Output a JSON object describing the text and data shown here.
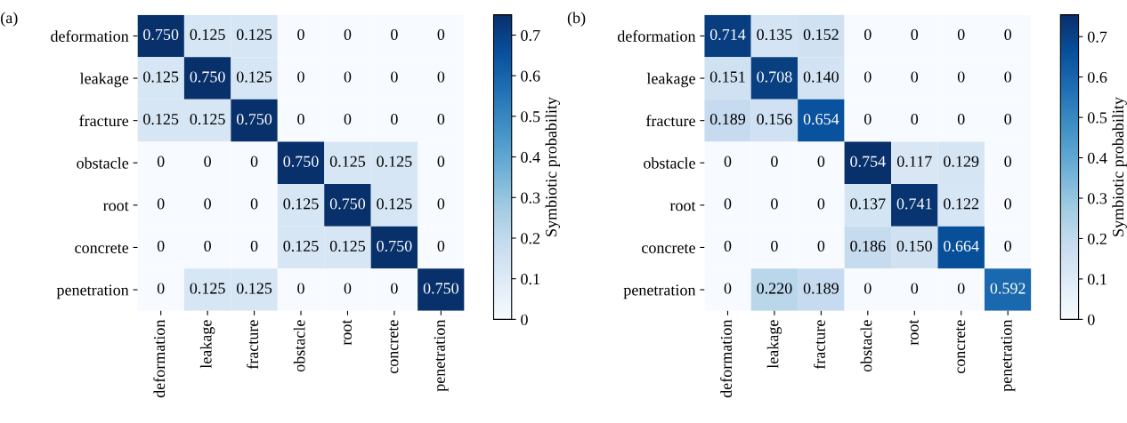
{
  "chart_data": [
    {
      "type": "heatmap",
      "title": "(a)",
      "clabel": "Symbiotic probability",
      "categories": [
        "deformation",
        "leakage",
        "fracture",
        "obstacle",
        "root",
        "concrete",
        "penetration"
      ],
      "y_categories": [
        "deformation",
        "leakage",
        "fracture",
        "obstacle",
        "root",
        "concrete",
        "penetration"
      ],
      "cells": [
        [
          0.75,
          0.125,
          0.125,
          0,
          0,
          0,
          0
        ],
        [
          0.125,
          0.75,
          0.125,
          0,
          0,
          0,
          0
        ],
        [
          0.125,
          0.125,
          0.75,
          0,
          0,
          0,
          0
        ],
        [
          0,
          0,
          0,
          0.75,
          0.125,
          0.125,
          0
        ],
        [
          0,
          0,
          0,
          0.125,
          0.75,
          0.125,
          0
        ],
        [
          0,
          0,
          0,
          0.125,
          0.125,
          0.75,
          0
        ],
        [
          0,
          0.125,
          0.125,
          0,
          0,
          0,
          0.75
        ]
      ],
      "cell_labels": [
        [
          "0.750",
          "0.125",
          "0.125",
          "0",
          "0",
          "0",
          "0"
        ],
        [
          "0.125",
          "0.750",
          "0.125",
          "0",
          "0",
          "0",
          "0"
        ],
        [
          "0.125",
          "0.125",
          "0.750",
          "0",
          "0",
          "0",
          "0"
        ],
        [
          "0",
          "0",
          "0",
          "0.750",
          "0.125",
          "0.125",
          "0"
        ],
        [
          "0",
          "0",
          "0",
          "0.125",
          "0.750",
          "0.125",
          "0"
        ],
        [
          "0",
          "0",
          "0",
          "0.125",
          "0.125",
          "0.750",
          "0"
        ],
        [
          "0",
          "0.125",
          "0.125",
          "0",
          "0",
          "0",
          "0.750"
        ]
      ],
      "clim": [
        0,
        0.75
      ],
      "cticks": [
        0,
        0.1,
        0.2,
        0.3,
        0.4,
        0.5,
        0.6,
        0.7
      ]
    },
    {
      "type": "heatmap",
      "title": "(b)",
      "clabel": "Symbiotic probability",
      "categories": [
        "deformation",
        "leakage",
        "fracture",
        "obstacle",
        "root",
        "concrete",
        "penetration"
      ],
      "y_categories": [
        "deformation",
        "leakage",
        "fracture",
        "obstacle",
        "root",
        "concrete",
        "penetration"
      ],
      "cells": [
        [
          0.714,
          0.135,
          0.152,
          0,
          0,
          0,
          0
        ],
        [
          0.151,
          0.708,
          0.14,
          0,
          0,
          0,
          0
        ],
        [
          0.189,
          0.156,
          0.654,
          0,
          0,
          0,
          0
        ],
        [
          0,
          0,
          0,
          0.754,
          0.117,
          0.129,
          0
        ],
        [
          0,
          0,
          0,
          0.137,
          0.741,
          0.122,
          0
        ],
        [
          0,
          0,
          0,
          0.186,
          0.15,
          0.664,
          0
        ],
        [
          0,
          0.22,
          0.189,
          0,
          0,
          0,
          0.592
        ]
      ],
      "cell_labels": [
        [
          "0.714",
          "0.135",
          "0.152",
          "0",
          "0",
          "0",
          "0"
        ],
        [
          "0.151",
          "0.708",
          "0.140",
          "0",
          "0",
          "0",
          "0"
        ],
        [
          "0.189",
          "0.156",
          "0.654",
          "0",
          "0",
          "0",
          "0"
        ],
        [
          "0",
          "0",
          "0",
          "0.754",
          "0.117",
          "0.129",
          "0"
        ],
        [
          "0",
          "0",
          "0",
          "0.137",
          "0.741",
          "0.122",
          "0"
        ],
        [
          "0",
          "0",
          "0",
          "0.186",
          "0.150",
          "0.664",
          "0"
        ],
        [
          "0",
          "0.220",
          "0.189",
          "0",
          "0",
          "0",
          "0.592"
        ]
      ],
      "clim": [
        0,
        0.754
      ],
      "cticks": [
        0,
        0.1,
        0.2,
        0.3,
        0.4,
        0.5,
        0.6,
        0.7
      ]
    }
  ]
}
